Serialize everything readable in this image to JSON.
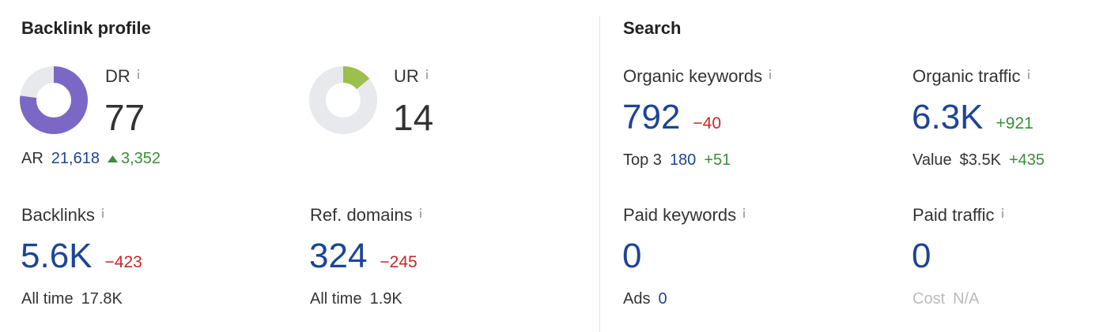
{
  "backlink_profile": {
    "title": "Backlink profile",
    "dr": {
      "label": "DR",
      "value": 77,
      "range": [
        0,
        100
      ],
      "color": "#7b68c6"
    },
    "ur": {
      "label": "UR",
      "value": 14,
      "range": [
        0,
        100
      ],
      "color": "#9cc04c"
    },
    "ar": {
      "label": "AR",
      "value": "21,618",
      "change": "3,352"
    },
    "backlinks": {
      "label": "Backlinks",
      "value": "5.6K",
      "change": "−423",
      "sub_label": "All time",
      "sub_value": "17.8K"
    },
    "ref_domains": {
      "label": "Ref. domains",
      "value": "324",
      "change": "−245",
      "sub_label": "All time",
      "sub_value": "1.9K"
    }
  },
  "search": {
    "title": "Search",
    "organic_keywords": {
      "label": "Organic keywords",
      "value": "792",
      "change": "−40",
      "sub_label": "Top 3",
      "sub_value": "180",
      "sub_change": "+51"
    },
    "organic_traffic": {
      "label": "Organic traffic",
      "value": "6.3K",
      "change": "+921",
      "sub_label": "Value",
      "sub_value": "$3.5K",
      "sub_change": "+435"
    },
    "paid_keywords": {
      "label": "Paid keywords",
      "value": "0",
      "sub_label": "Ads",
      "sub_value": "0"
    },
    "paid_traffic": {
      "label": "Paid traffic",
      "value": "0",
      "sub_label": "Cost",
      "sub_value": "N/A"
    }
  }
}
